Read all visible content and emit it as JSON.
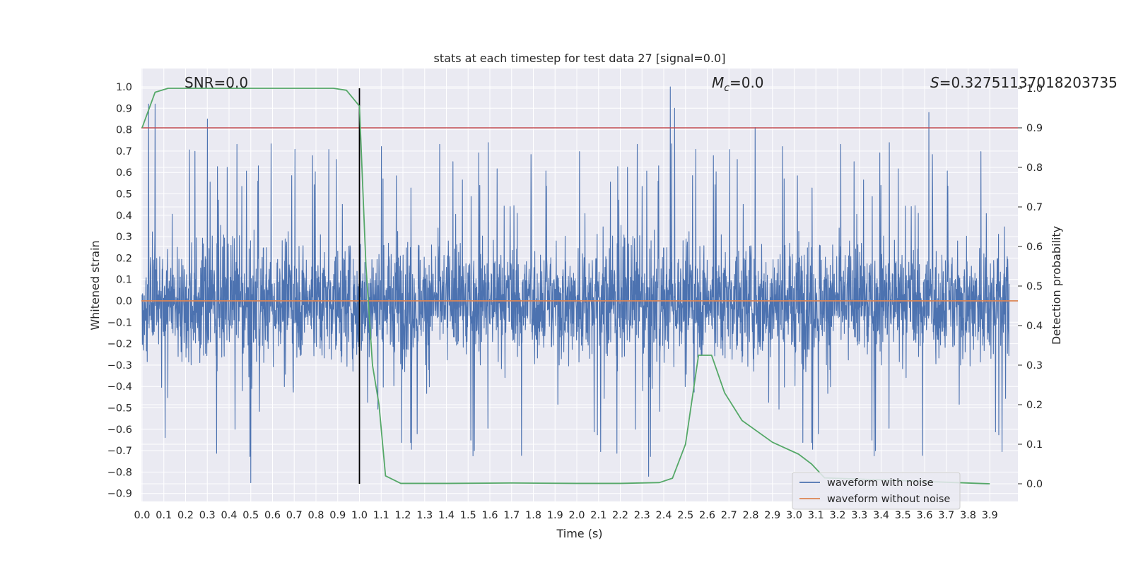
{
  "chart_data": {
    "type": "line",
    "title": "stats at each timestep for test data 27 [signal=0.0]",
    "xlabel": "Time (s)",
    "ylabel": "Whitened strain",
    "y2label": "Detection probability",
    "xlim": [
      0.0,
      3.99
    ],
    "ylim": [
      -0.95,
      1.09
    ],
    "y2lim": [
      -0.05,
      1.0
    ],
    "x_ticks": [
      "0.0",
      "0.1",
      "0.2",
      "0.3",
      "0.4",
      "0.5",
      "0.6",
      "0.7",
      "0.8",
      "0.9",
      "1.0",
      "1.1",
      "1.2",
      "1.3",
      "1.4",
      "1.5",
      "1.6",
      "1.7",
      "1.8",
      "1.9",
      "2.0",
      "2.1",
      "2.2",
      "2.3",
      "2.4",
      "2.5",
      "2.6",
      "2.7",
      "2.8",
      "2.9",
      "3.0",
      "3.1",
      "3.2",
      "3.3",
      "3.4",
      "3.5",
      "3.6",
      "3.7",
      "3.8",
      "3.9"
    ],
    "y_ticks": [
      "1.0",
      "0.9",
      "0.8",
      "0.7",
      "0.6",
      "0.5",
      "0.4",
      "0.3",
      "0.2",
      "0.1",
      "0.0",
      "-0.1",
      "-0.2",
      "-0.3",
      "-0.4",
      "-0.5",
      "-0.6",
      "-0.7",
      "-0.8",
      "-0.9"
    ],
    "y2_ticks": [
      "1.0",
      "0.9",
      "0.8",
      "0.7",
      "0.6",
      "0.5",
      "0.4",
      "0.3",
      "0.2",
      "0.1",
      "0.0"
    ],
    "annotations": {
      "snr": "SNR=0.0",
      "mc_symbol": "M",
      "mc_sub": "c",
      "mc_value": "=0.0",
      "s_symbol": "S",
      "s_value": "=0.32751137018203735"
    },
    "legend": {
      "position": "lower-right",
      "entries": [
        "waveform with noise",
        "waveform without noise"
      ]
    },
    "vertical_line_x": 1.0,
    "threshold_probability": 0.9,
    "series": [
      {
        "name": "waveform with noise",
        "color": "#4c72b0",
        "description": "noisy whitened strain, spans roughly -0.85 to 1.0",
        "min": -0.85,
        "max": 1.0,
        "peaks": [
          [
            0.03,
            0.92
          ],
          [
            0.06,
            0.92
          ],
          [
            0.3,
            0.85
          ],
          [
            0.5,
            -0.85
          ],
          [
            2.43,
            1.0
          ],
          [
            2.45,
            0.9
          ],
          [
            2.82,
            0.81
          ],
          [
            3.62,
            0.88
          ],
          [
            2.33,
            -0.82
          ]
        ]
      },
      {
        "name": "waveform without noise",
        "color": "#dd8452",
        "value": 0.0
      },
      {
        "name": "detection probability",
        "color": "#55a868",
        "axis": "right",
        "x": [
          0.0,
          0.06,
          0.12,
          0.3,
          0.6,
          0.88,
          0.94,
          1.0,
          1.03,
          1.06,
          1.09,
          1.12,
          1.19,
          1.4,
          1.7,
          2.0,
          2.2,
          2.38,
          2.44,
          2.5,
          2.56,
          2.62,
          2.68,
          2.76,
          2.9,
          3.02,
          3.08,
          3.14,
          3.9
        ],
        "values": [
          0.9,
          0.99,
          1.0,
          1.0,
          1.0,
          1.0,
          0.995,
          0.955,
          0.55,
          0.3,
          0.2,
          0.02,
          0.001,
          0.001,
          0.002,
          0.001,
          0.001,
          0.003,
          0.014,
          0.1,
          0.325,
          0.325,
          0.23,
          0.16,
          0.105,
          0.075,
          0.05,
          0.015,
          0.0
        ]
      }
    ]
  },
  "colors": {
    "plot_bg": "#eaeaf2",
    "grid": "#ffffff",
    "noise": "#4c72b0",
    "clean": "#dd8452",
    "prob": "#55a868",
    "threshold": "#c44e52",
    "vline": "#000000",
    "text": "#262626"
  }
}
